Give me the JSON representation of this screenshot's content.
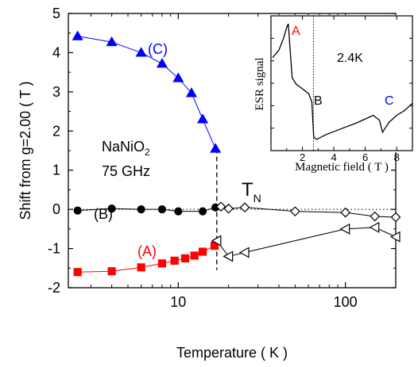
{
  "chart_data": [
    {
      "type": "scatter",
      "xlabel": "Temperature ( K )",
      "ylabel": "Shift from g=2.00 ( T )",
      "xscale": "log",
      "xlim": [
        2.2,
        200
      ],
      "ylim": [
        -2,
        5
      ],
      "xticks": [
        10,
        100
      ],
      "yticks": [
        -2,
        -1,
        0,
        1,
        2,
        3,
        4,
        5
      ],
      "colors": {
        "C": "#0000ff",
        "B": "#000000",
        "A": "#ff0000",
        "open": "#000000"
      },
      "annotations": {
        "compound": "NaNiO",
        "compound_sub": "2",
        "frequency": "75 GHz",
        "tn_main": "T",
        "tn_sub": "N",
        "transition_T": 17
      },
      "series": [
        {
          "name": "(C)",
          "marker": "triangle-up",
          "filled": true,
          "color": "#0000ff",
          "x": [
            2.5,
            4,
            6,
            8,
            10,
            12,
            14,
            16.7
          ],
          "y": [
            4.42,
            4.27,
            4.0,
            3.72,
            3.35,
            2.97,
            2.3,
            1.55
          ]
        },
        {
          "name": "(B)",
          "marker": "circle",
          "filled": true,
          "color": "#000000",
          "x": [
            2.5,
            4,
            6,
            8,
            10,
            14,
            16.7
          ],
          "y": [
            -0.03,
            0.02,
            0.0,
            0.0,
            -0.05,
            -0.05,
            0.05
          ]
        },
        {
          "name": "(A)",
          "marker": "square",
          "filled": true,
          "color": "#ff0000",
          "x": [
            2.5,
            4,
            6,
            8,
            9.5,
            11,
            12.5,
            14,
            16.5
          ],
          "y": [
            -1.6,
            -1.58,
            -1.48,
            -1.38,
            -1.31,
            -1.25,
            -1.18,
            -1.08,
            -0.93
          ]
        },
        {
          "marker": "diamond",
          "filled": false,
          "color": "#000000",
          "x": [
            18,
            20,
            25,
            50,
            100,
            150,
            200
          ],
          "y": [
            0.07,
            0.02,
            0.05,
            -0.05,
            -0.08,
            -0.18,
            -0.2
          ]
        },
        {
          "marker": "triangle-left",
          "filled": false,
          "color": "#000000",
          "x": [
            17,
            20,
            25,
            100,
            150,
            200
          ],
          "y": [
            -0.8,
            -1.2,
            -1.1,
            -0.5,
            -0.46,
            -0.7
          ]
        }
      ]
    },
    {
      "type": "line",
      "xlabel": "Magnetic field ( T )",
      "ylabel": "ESR signal",
      "xlim": [
        0,
        9
      ],
      "xticks": [
        2,
        4,
        6,
        8
      ],
      "annotations": {
        "temperature": "2.4K",
        "label_A": "A",
        "label_B": "B",
        "label_C": "C",
        "marker_field": 2.7
      },
      "series": [
        {
          "x": [
            0.1,
            0.5,
            0.8,
            1.0,
            1.1,
            1.2,
            1.35,
            1.6,
            2.0,
            2.4,
            2.6,
            2.72,
            2.9,
            3.5,
            4.5,
            5.5,
            6.5,
            6.9,
            7.1,
            7.5,
            8.0,
            8.5,
            9.0
          ],
          "y": [
            0.72,
            0.78,
            0.88,
            0.97,
            1.0,
            0.82,
            0.55,
            0.5,
            0.46,
            0.42,
            0.35,
            0.06,
            0.04,
            0.08,
            0.13,
            0.18,
            0.24,
            0.2,
            0.1,
            0.18,
            0.24,
            0.28,
            0.34
          ]
        }
      ]
    }
  ]
}
